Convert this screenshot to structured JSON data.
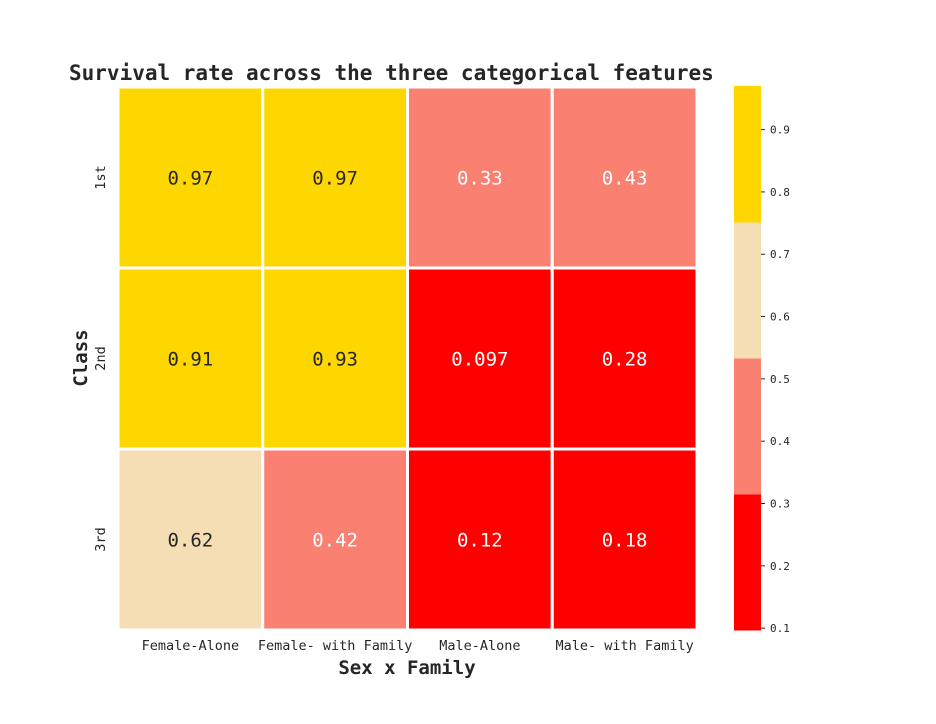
{
  "chart_data": {
    "type": "heatmap",
    "title": "Survival rate across the three categorical features",
    "xlabel": "Sex x Family",
    "ylabel": "Class",
    "columns": [
      "Female-Alone",
      "Female- with Family",
      "Male-Alone",
      "Male- with Family"
    ],
    "rows": [
      "1st",
      "2nd",
      "3rd"
    ],
    "values": [
      [
        0.97,
        0.97,
        0.33,
        0.43
      ],
      [
        0.91,
        0.93,
        0.097,
        0.28
      ],
      [
        0.62,
        0.42,
        0.12,
        0.18
      ]
    ],
    "value_labels": [
      [
        "0.97",
        "0.97",
        "0.33",
        "0.43"
      ],
      [
        "0.91",
        "0.93",
        "0.097",
        "0.28"
      ],
      [
        "0.62",
        "0.42",
        "0.12",
        "0.18"
      ]
    ],
    "colorbar": {
      "range": [
        0.097,
        0.97
      ],
      "colors": [
        "#ff0000",
        "#fa8072",
        "#f5deb3",
        "#ffd700"
      ],
      "ticks": [
        0.1,
        0.2,
        0.3,
        0.4,
        0.5,
        0.6,
        0.7,
        0.8,
        0.9
      ],
      "tick_labels": [
        "0.1",
        "0.2",
        "0.3",
        "0.4",
        "0.5",
        "0.6",
        "0.7",
        "0.8",
        "0.9"
      ]
    },
    "text_colors": {
      "dark": "#262626",
      "light": "#ffffff"
    }
  }
}
